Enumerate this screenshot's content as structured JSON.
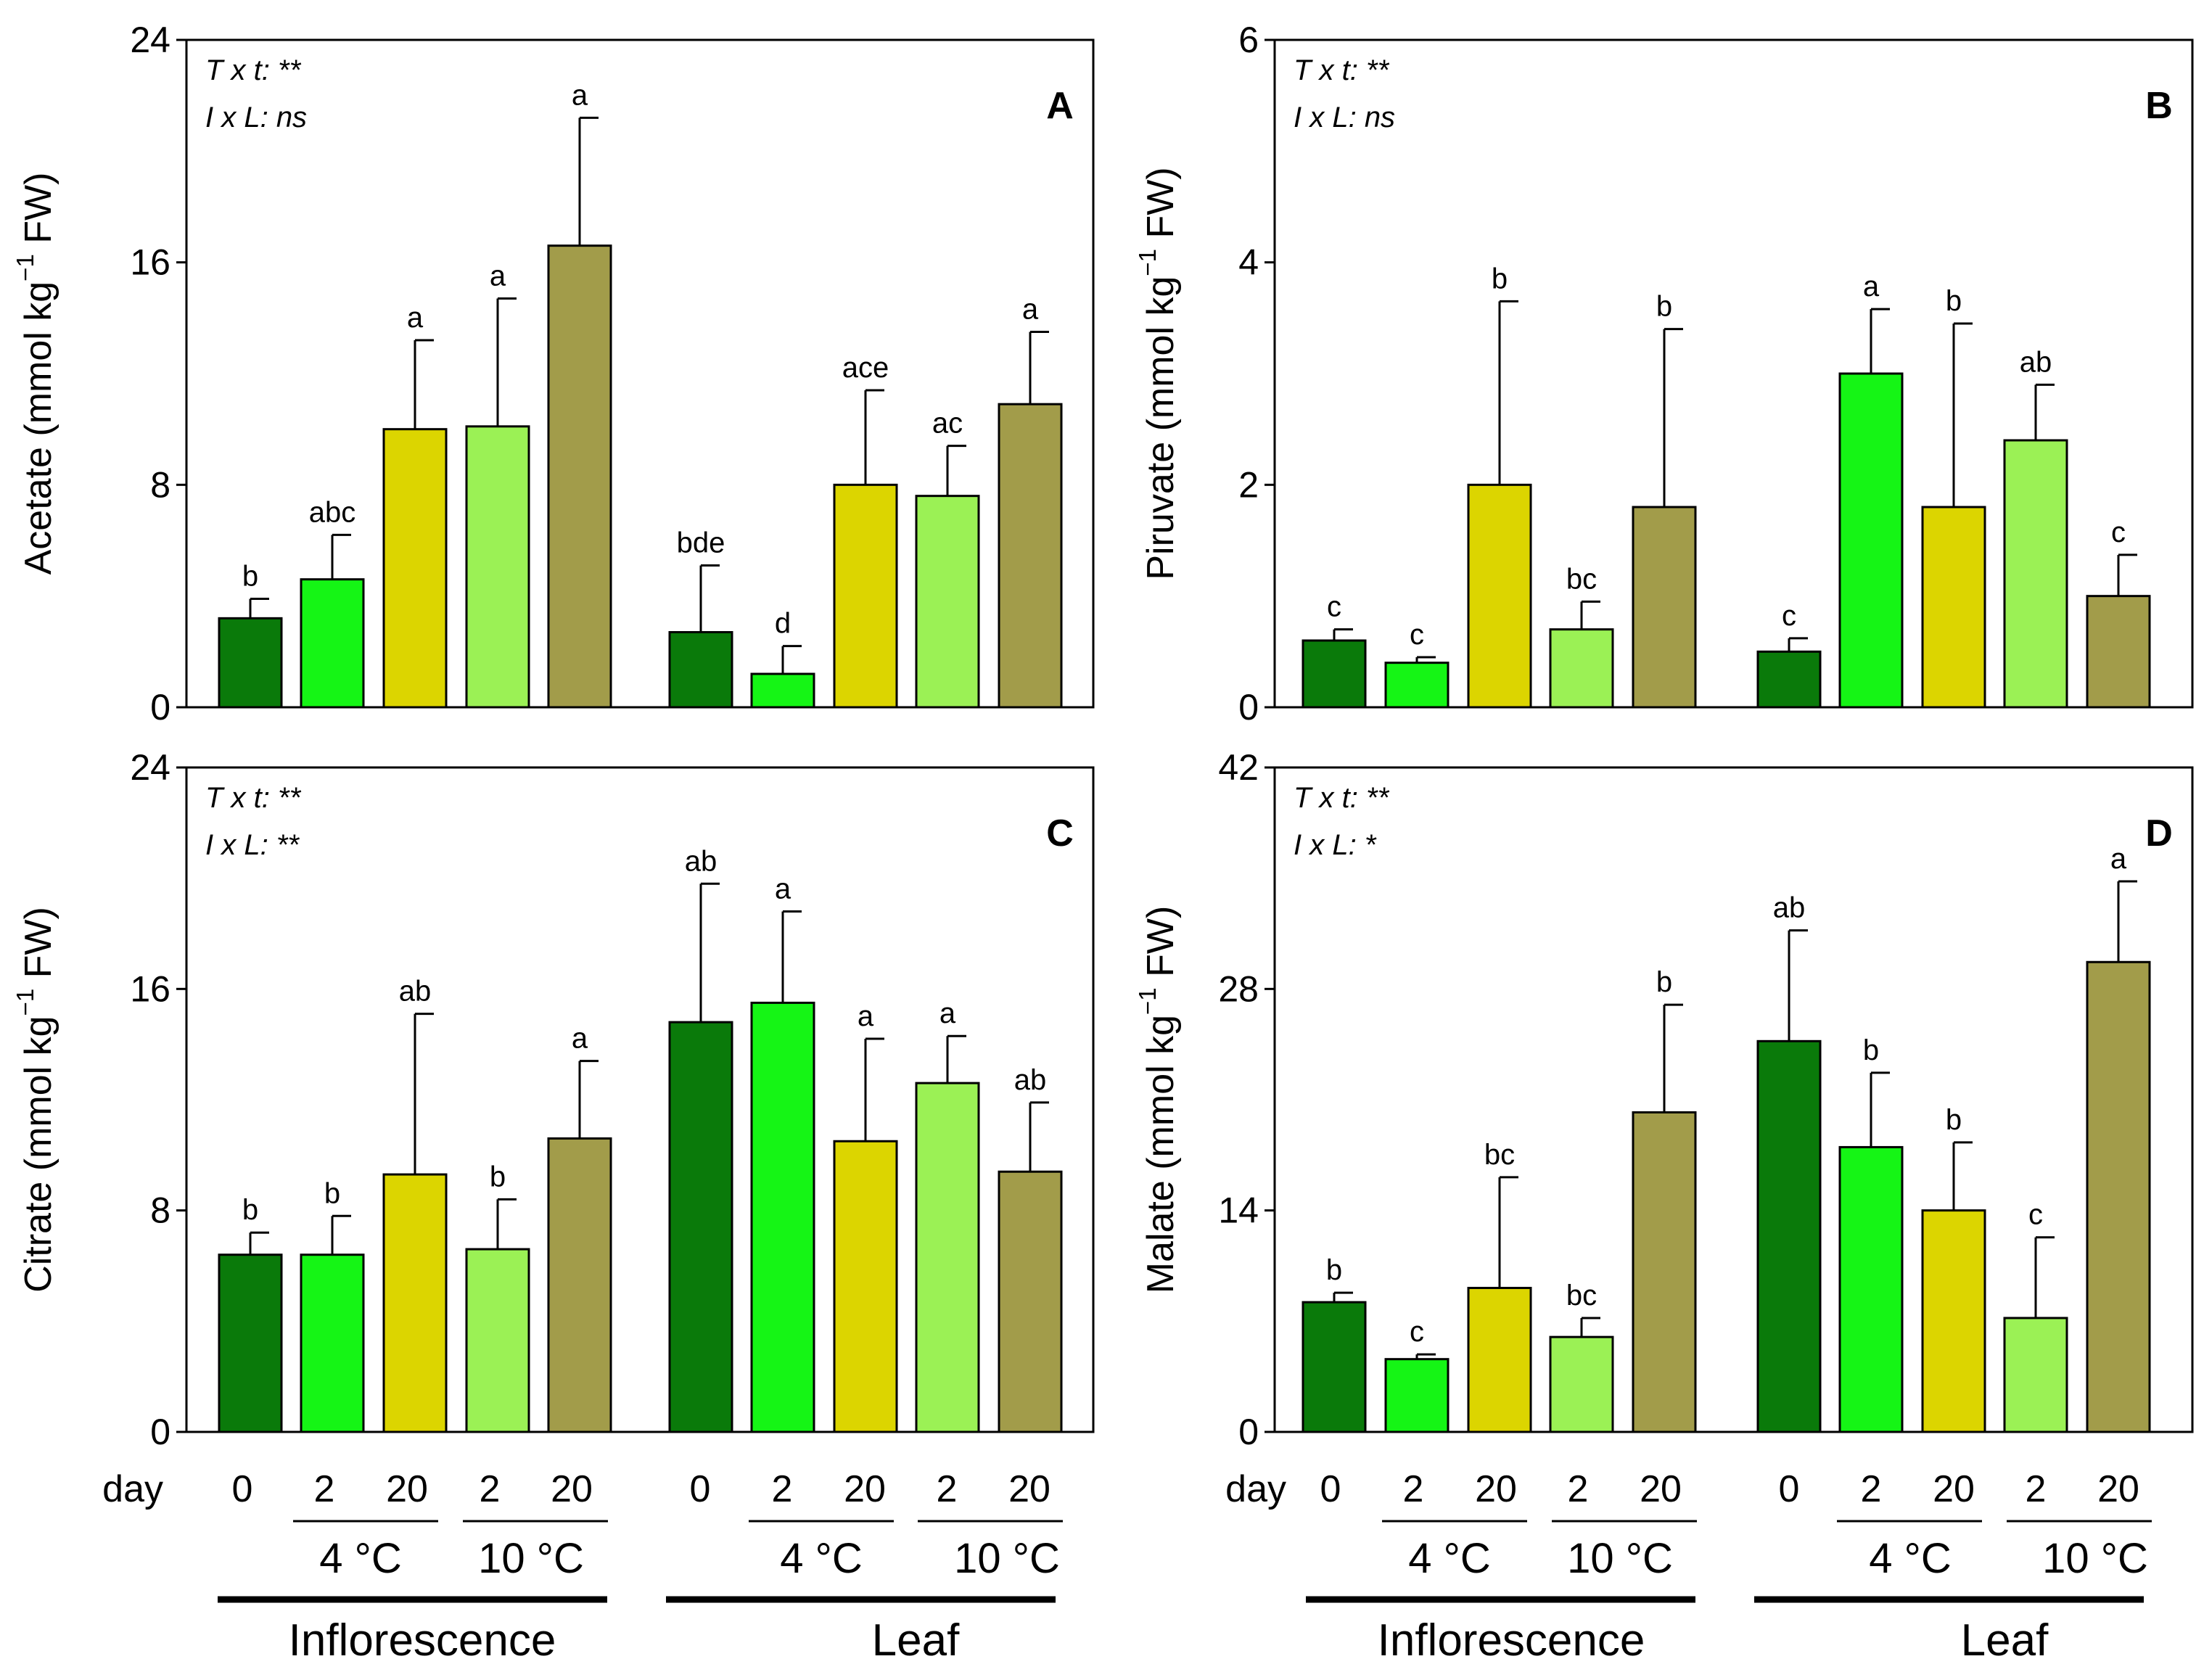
{
  "colors": {
    "day0": "#0a7a0a",
    "day2_4C": "#15f515",
    "day20_4C": "#dcd500",
    "day2_10C": "#9bf155",
    "day20_10C": "#a29c4a"
  },
  "ylabel_suffix": "−1",
  "xaxis": {
    "day_label": "day",
    "day_ticks": [
      "0",
      "2",
      "20",
      "2",
      "20"
    ],
    "temp_labels": [
      "4 °C",
      "10 °C"
    ],
    "group_labels": [
      "Inflorescence",
      "Leaf"
    ]
  },
  "chart_data": [
    {
      "type": "bar",
      "panel": "A",
      "ylabel_main": "Acetate (mmol kg",
      "ylabel_end": " FW)",
      "ylim": [
        0,
        24
      ],
      "yticks": [
        "0",
        "8",
        "16",
        "24"
      ],
      "stats": [
        "T x t: **",
        "I x L: ns"
      ],
      "groups": [
        "Inflorescence",
        "Leaf"
      ],
      "categories": [
        "0",
        "2 (4 °C)",
        "20 (4 °C)",
        "2 (10 °C)",
        "20 (10 °C)"
      ],
      "series": [
        {
          "name": "Inflorescence",
          "values": [
            3.2,
            4.6,
            10.0,
            10.1,
            16.6
          ],
          "errors": [
            0.7,
            1.6,
            3.2,
            4.6,
            4.6
          ],
          "letters": [
            "b",
            "abc",
            "a",
            "a",
            "a"
          ]
        },
        {
          "name": "Leaf",
          "values": [
            2.7,
            1.2,
            8.0,
            7.6,
            10.9
          ],
          "errors": [
            2.4,
            1.0,
            3.4,
            1.8,
            2.6
          ],
          "letters": [
            "bde",
            "d",
            "ace",
            "ac",
            "a"
          ]
        }
      ]
    },
    {
      "type": "bar",
      "panel": "B",
      "ylabel_main": "Piruvate (mmol kg",
      "ylabel_end": " FW)",
      "ylim": [
        0,
        6
      ],
      "yticks": [
        "0",
        "2",
        "4",
        "6"
      ],
      "stats": [
        "T x t: **",
        "I x L: ns"
      ],
      "groups": [
        "Inflorescence",
        "Leaf"
      ],
      "categories": [
        "0",
        "2 (4 °C)",
        "20 (4 °C)",
        "2 (10 °C)",
        "20 (10 °C)"
      ],
      "series": [
        {
          "name": "Inflorescence",
          "values": [
            0.6,
            0.4,
            2.0,
            0.7,
            1.8
          ],
          "errors": [
            0.1,
            0.05,
            1.65,
            0.25,
            1.6
          ],
          "letters": [
            "c",
            "c",
            "b",
            "bc",
            "b"
          ]
        },
        {
          "name": "Leaf",
          "values": [
            0.5,
            3.0,
            1.8,
            2.4,
            1.0
          ],
          "errors": [
            0.12,
            0.58,
            1.65,
            0.5,
            0.37
          ],
          "letters": [
            "c",
            "a",
            "b",
            "ab",
            "c"
          ]
        }
      ]
    },
    {
      "type": "bar",
      "panel": "C",
      "ylabel_main": "Citrate (mmol kg",
      "ylabel_end": " FW)",
      "ylim": [
        0,
        24
      ],
      "yticks": [
        "0",
        "8",
        "16",
        "24"
      ],
      "stats": [
        "T x t: **",
        "I x L: **"
      ],
      "groups": [
        "Inflorescence",
        "Leaf"
      ],
      "categories": [
        "0",
        "2 (4 °C)",
        "20 (4 °C)",
        "2 (10 °C)",
        "20 (10 °C)"
      ],
      "series": [
        {
          "name": "Inflorescence",
          "values": [
            6.4,
            6.4,
            9.3,
            6.6,
            10.6
          ],
          "errors": [
            0.8,
            1.4,
            5.8,
            1.8,
            2.8
          ],
          "letters": [
            "b",
            "b",
            "ab",
            "b",
            "a"
          ]
        },
        {
          "name": "Leaf",
          "values": [
            14.8,
            15.5,
            10.5,
            12.6,
            9.4
          ],
          "errors": [
            5.0,
            3.3,
            3.7,
            1.7,
            2.5
          ],
          "letters": [
            "ab",
            "a",
            "a",
            "a",
            "ab"
          ]
        }
      ]
    },
    {
      "type": "bar",
      "panel": "D",
      "ylabel_main": "Malate (mmol kg",
      "ylabel_end": " FW)",
      "ylim": [
        0,
        42
      ],
      "yticks": [
        "0",
        "14",
        "28",
        "42"
      ],
      "stats": [
        "T x t: **",
        "I x L: *"
      ],
      "groups": [
        "Inflorescence",
        "Leaf"
      ],
      "categories": [
        "0",
        "2 (4 °C)",
        "20 (4 °C)",
        "2 (10 °C)",
        "20 (10 °C)"
      ],
      "series": [
        {
          "name": "Inflorescence",
          "values": [
            8.2,
            4.6,
            9.1,
            6.0,
            20.2
          ],
          "errors": [
            0.6,
            0.3,
            7.0,
            1.2,
            6.8
          ],
          "letters": [
            "b",
            "c",
            "bc",
            "bc",
            "b"
          ]
        },
        {
          "name": "Leaf",
          "values": [
            24.7,
            18.0,
            14.0,
            7.2,
            29.7
          ],
          "errors": [
            7.0,
            4.7,
            4.3,
            5.1,
            5.1
          ],
          "letters": [
            "ab",
            "b",
            "b",
            "c",
            "a"
          ]
        }
      ]
    }
  ]
}
